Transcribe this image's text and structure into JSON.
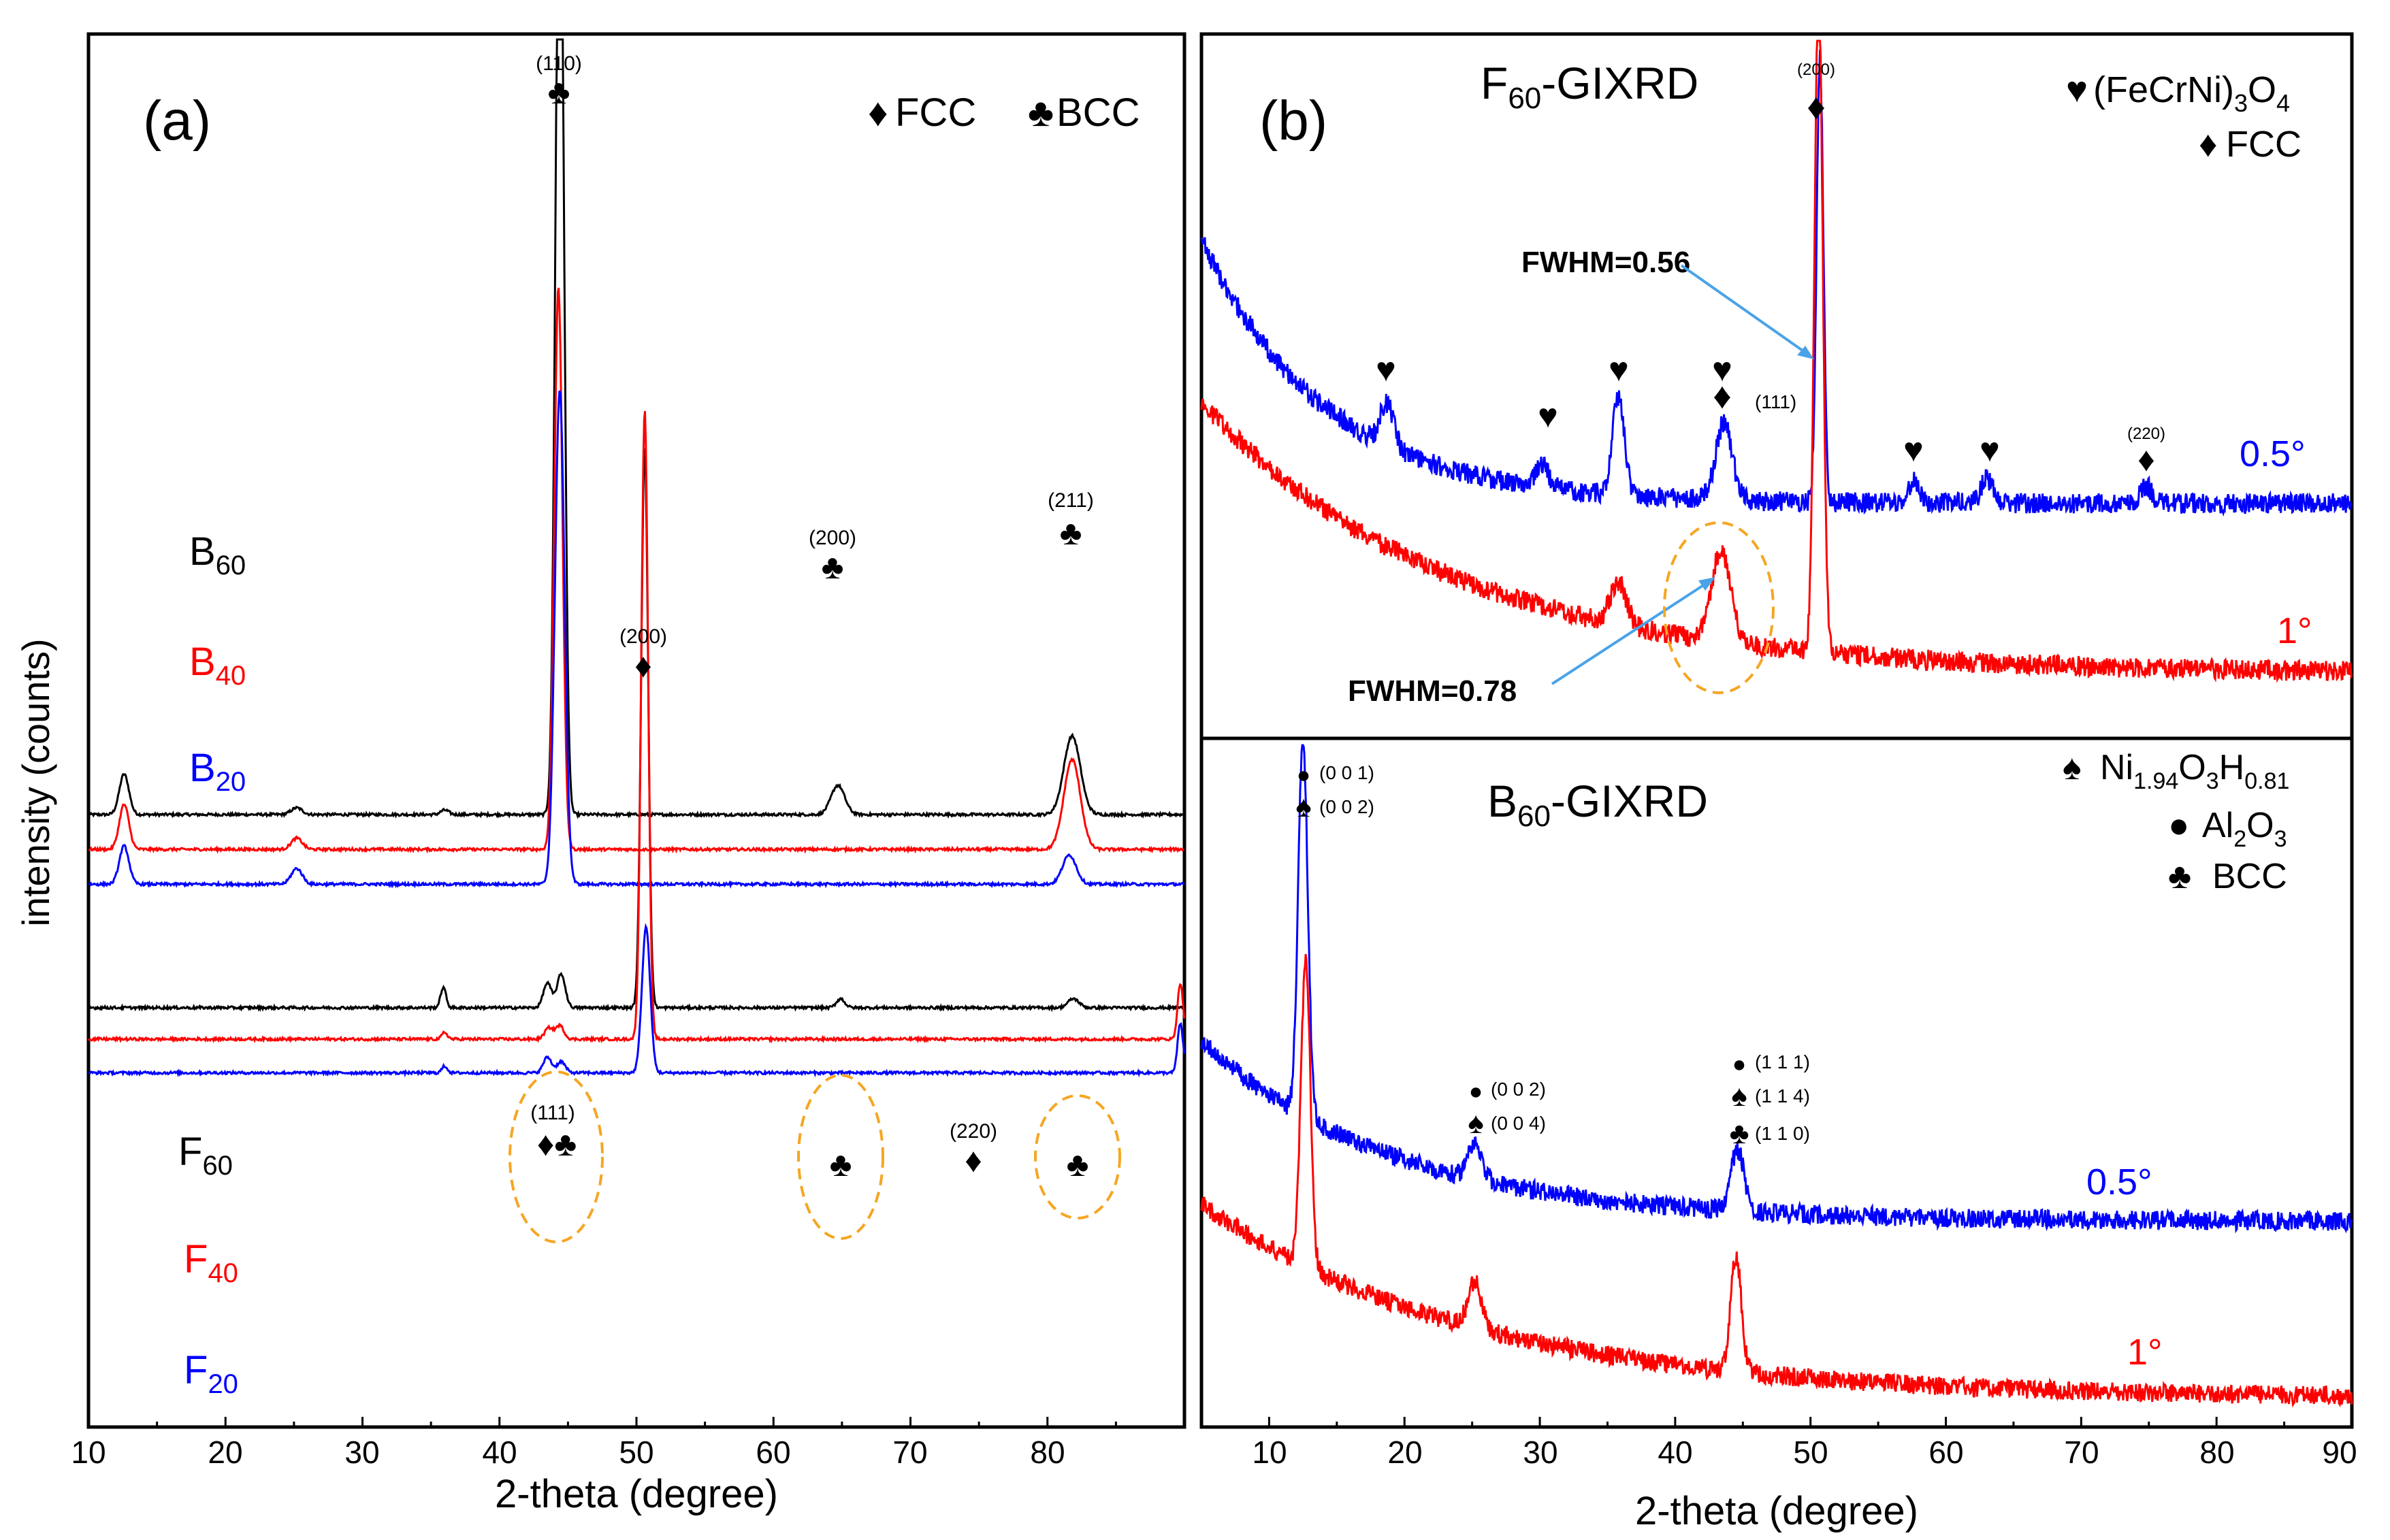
{
  "chart_data": [
    {
      "panel_label": "(a)",
      "type": "line",
      "xlabel": "2-theta (degree)",
      "ylabel": "intensity (counts)",
      "xlim": [
        10,
        90
      ],
      "x_ticks": [
        "10",
        "20",
        "30",
        "40",
        "50",
        "60",
        "70",
        "80"
      ],
      "legend": [
        {
          "symbol": "♦",
          "label": "FCC"
        },
        {
          "symbol": "♣",
          "label": "BCC"
        }
      ],
      "series": [
        {
          "name": "B60",
          "main": "B",
          "sub": "60",
          "color": "#000000",
          "baseline": 0.6,
          "peaks": [
            [
              12.6,
              0.18,
              0.35
            ],
            [
              25.2,
              0.03,
              0.4
            ],
            [
              36.0,
              0.02,
              0.3
            ],
            [
              44.4,
              4.6,
              0.3
            ],
            [
              64.7,
              0.13,
              0.5
            ],
            [
              81.8,
              0.35,
              0.6
            ]
          ]
        },
        {
          "name": "B40",
          "main": "B",
          "sub": "40",
          "color": "#ff0000",
          "baseline": 0.445,
          "peaks": [
            [
              12.6,
              0.2,
              0.35
            ],
            [
              25.2,
              0.05,
              0.4
            ],
            [
              44.3,
              2.5,
              0.3
            ],
            [
              81.8,
              0.4,
              0.6
            ]
          ]
        },
        {
          "name": "B20",
          "main": "B",
          "sub": "20",
          "color": "#0000ff",
          "baseline": 0.29,
          "peaks": [
            [
              12.6,
              0.17,
              0.35
            ],
            [
              25.2,
              0.07,
              0.4
            ],
            [
              44.4,
              2.2,
              0.35
            ],
            [
              81.6,
              0.13,
              0.5
            ]
          ]
        },
        {
          "name": "F60",
          "main": "F",
          "sub": "60",
          "color": "#000000",
          "baseline": -0.26,
          "peaks": [
            [
              35.9,
              0.09,
              0.2
            ],
            [
              43.5,
              0.11,
              0.3
            ],
            [
              44.5,
              0.15,
              0.3
            ],
            [
              50.6,
              2.5,
              0.25
            ],
            [
              64.9,
              0.04,
              0.3
            ],
            [
              81.9,
              0.04,
              0.4
            ]
          ]
        },
        {
          "name": "F40",
          "main": "F",
          "sub": "40",
          "color": "#ff0000",
          "baseline": -0.4,
          "peaks": [
            [
              36.0,
              0.03,
              0.2
            ],
            [
              43.6,
              0.05,
              0.3
            ],
            [
              44.4,
              0.06,
              0.3
            ],
            [
              50.6,
              2.8,
              0.25
            ],
            [
              89.7,
              0.25,
              0.2
            ]
          ]
        },
        {
          "name": "F20",
          "main": "F",
          "sub": "20",
          "color": "#0000ff",
          "baseline": -0.55,
          "peaks": [
            [
              36.0,
              0.03,
              0.2
            ],
            [
              43.5,
              0.07,
              0.3
            ],
            [
              44.5,
              0.05,
              0.3
            ],
            [
              50.7,
              0.65,
              0.3
            ],
            [
              89.7,
              0.22,
              0.2
            ]
          ]
        }
      ],
      "annotations": [
        {
          "hkl": "(110)",
          "symbol": "♣"
        },
        {
          "hkl": "(200)",
          "symbol": "♣"
        },
        {
          "hkl": "(211)",
          "symbol": "♣"
        },
        {
          "hkl": "(200)",
          "symbol": "♦"
        },
        {
          "hkl": "(111)",
          "symbol": "♦♣"
        },
        {
          "hkl": "(220)",
          "symbol": "♦"
        },
        {
          "hkl": "",
          "symbol": "♣"
        },
        {
          "hkl": "",
          "symbol": "♣"
        }
      ]
    },
    {
      "panel_label": "(b)",
      "type": "line",
      "title_main": "F",
      "title_sub": "60",
      "title_rest": "-GIXRD",
      "xlim": [
        5,
        90
      ],
      "legend": [
        {
          "symbol": "♥",
          "label": "(FeCrNi)",
          "sub": "3",
          "tail": "O",
          "sub2": "4"
        },
        {
          "symbol": "♦",
          "label": "FCC",
          "sub": "",
          "tail": "",
          "sub2": ""
        }
      ],
      "series": [
        {
          "name": "0.5°",
          "color": "#0000ff",
          "base": 1.15,
          "plateau": 0.32,
          "decay": 9,
          "peaks": [
            [
              18.7,
              0.12,
              0.5
            ],
            [
              30.2,
              0.06,
              0.5
            ],
            [
              35.8,
              0.28,
              0.45
            ],
            [
              43.6,
              0.22,
              0.6
            ],
            [
              50.7,
              1.25,
              0.25
            ],
            [
              57.6,
              0.06,
              0.4
            ],
            [
              63.0,
              0.07,
              0.4
            ],
            [
              74.8,
              0.05,
              0.4
            ]
          ]
        },
        {
          "name": "1°",
          "color": "#ff0000",
          "base": 0.78,
          "plateau": 0.05,
          "decay": 18,
          "peaks": [
            [
              35.8,
              0.12,
              0.6
            ],
            [
              43.4,
              0.26,
              0.7
            ],
            [
              50.6,
              1.9,
              0.3
            ]
          ]
        }
      ],
      "annotations": [
        {
          "hkl": "(200)",
          "symbol": "♦"
        },
        {
          "hkl": "(111)",
          "symbol": "♦"
        },
        {
          "hkl": "(220)",
          "symbol": "♦"
        },
        {
          "hkl": "",
          "symbol": "♥"
        }
      ],
      "fwhm_labels": [
        "FWHM=0.56",
        "FWHM=0.78"
      ]
    },
    {
      "panel_label": "",
      "type": "line",
      "title_main": "B",
      "title_sub": "60",
      "title_rest": "-GIXRD",
      "xlabel": "2-theta (degree)",
      "xlim": [
        5,
        90
      ],
      "x_ticks": [
        "10",
        "20",
        "30",
        "40",
        "50",
        "60",
        "70",
        "80",
        "90"
      ],
      "legend": [
        {
          "symbol": "♠",
          "label": "Ni",
          "sub": "1.94",
          "tail": "O",
          "sub2": "3",
          "tail2": "H",
          "sub3": "0.81"
        },
        {
          "symbol": "●",
          "label": "Al",
          "sub": "2",
          "tail": "O",
          "sub2": "3",
          "tail2": "",
          "sub3": ""
        },
        {
          "symbol": "♣",
          "label": "BCC",
          "sub": "",
          "tail": "",
          "sub2": "",
          "tail2": "",
          "sub3": ""
        }
      ],
      "series": [
        {
          "name": "0.5°",
          "color": "#0000ff",
          "base": 0.55,
          "plateau": 0.12,
          "decay": 14,
          "peaks": [
            [
              12.5,
              1.0,
              0.35
            ],
            [
              25.2,
              0.1,
              0.5
            ],
            [
              44.6,
              0.16,
              0.5
            ]
          ]
        },
        {
          "name": "1°",
          "color": "#ff0000",
          "base": 0.42,
          "plateau": 0.0,
          "decay": 20,
          "peaks": [
            [
              12.7,
              0.8,
              0.35
            ],
            [
              25.2,
              0.12,
              0.5
            ],
            [
              44.5,
              0.3,
              0.4
            ]
          ]
        }
      ],
      "annotations": [
        {
          "lines": [
            "(0 0 1)",
            "(0 0 2)"
          ],
          "symbols": [
            "●",
            "♠"
          ]
        },
        {
          "lines": [
            "(0 0 2)",
            "(0 0 4)"
          ],
          "symbols": [
            "●",
            "♠"
          ]
        },
        {
          "lines": [
            "(1 1 1)",
            "(1 1 4)",
            "(1 1 0)"
          ],
          "symbols": [
            "●",
            "♠",
            "♣"
          ]
        }
      ]
    }
  ]
}
